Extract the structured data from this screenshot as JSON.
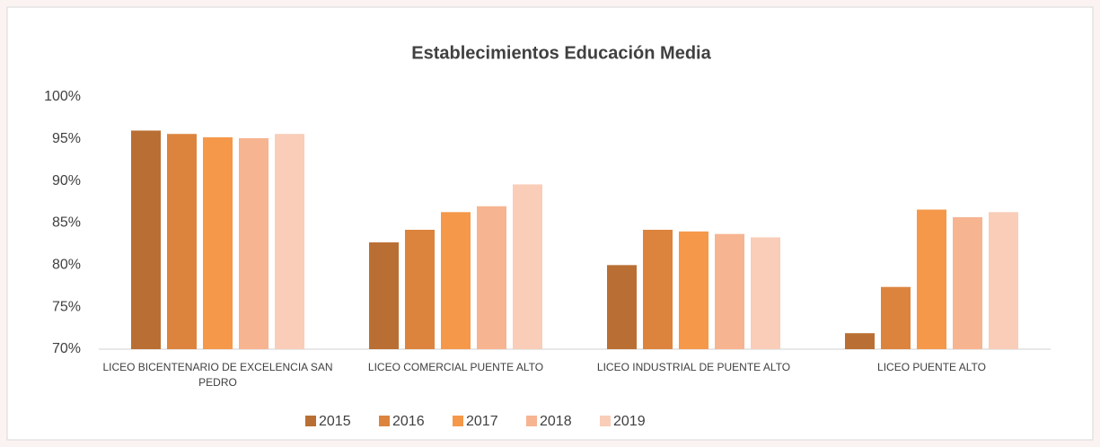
{
  "chart_data": {
    "type": "bar",
    "title": "Establecimientos Educación Media",
    "categories": [
      "LICEO BICENTENARIO DE EXCELENCIA SAN PEDRO",
      "LICEO COMERCIAL PUENTE ALTO",
      "LICEO INDUSTRIAL DE PUENTE ALTO",
      "LICEO PUENTE ALTO"
    ],
    "series": [
      {
        "name": "2015",
        "color": "#b96f33",
        "values": [
          96.0,
          82.7,
          80.0,
          71.9
        ]
      },
      {
        "name": "2016",
        "color": "#dc843e",
        "values": [
          95.6,
          84.2,
          84.2,
          77.4
        ]
      },
      {
        "name": "2017",
        "color": "#f5984a",
        "values": [
          95.2,
          86.3,
          84.0,
          86.6
        ]
      },
      {
        "name": "2018",
        "color": "#f7b491",
        "values": [
          95.1,
          87.0,
          83.7,
          85.7
        ]
      },
      {
        "name": "2019",
        "color": "#f9cdb8",
        "values": [
          95.6,
          89.6,
          83.3,
          86.3
        ]
      }
    ],
    "ylim": [
      70,
      100
    ],
    "yticks": [
      {
        "value": 70,
        "label": "70%"
      },
      {
        "value": 75,
        "label": "75%"
      },
      {
        "value": 80,
        "label": "80%"
      },
      {
        "value": 85,
        "label": "85%"
      },
      {
        "value": 90,
        "label": "90%"
      },
      {
        "value": 95,
        "label": "95%"
      },
      {
        "value": 100,
        "label": "100%"
      }
    ],
    "legend": "bottom"
  }
}
